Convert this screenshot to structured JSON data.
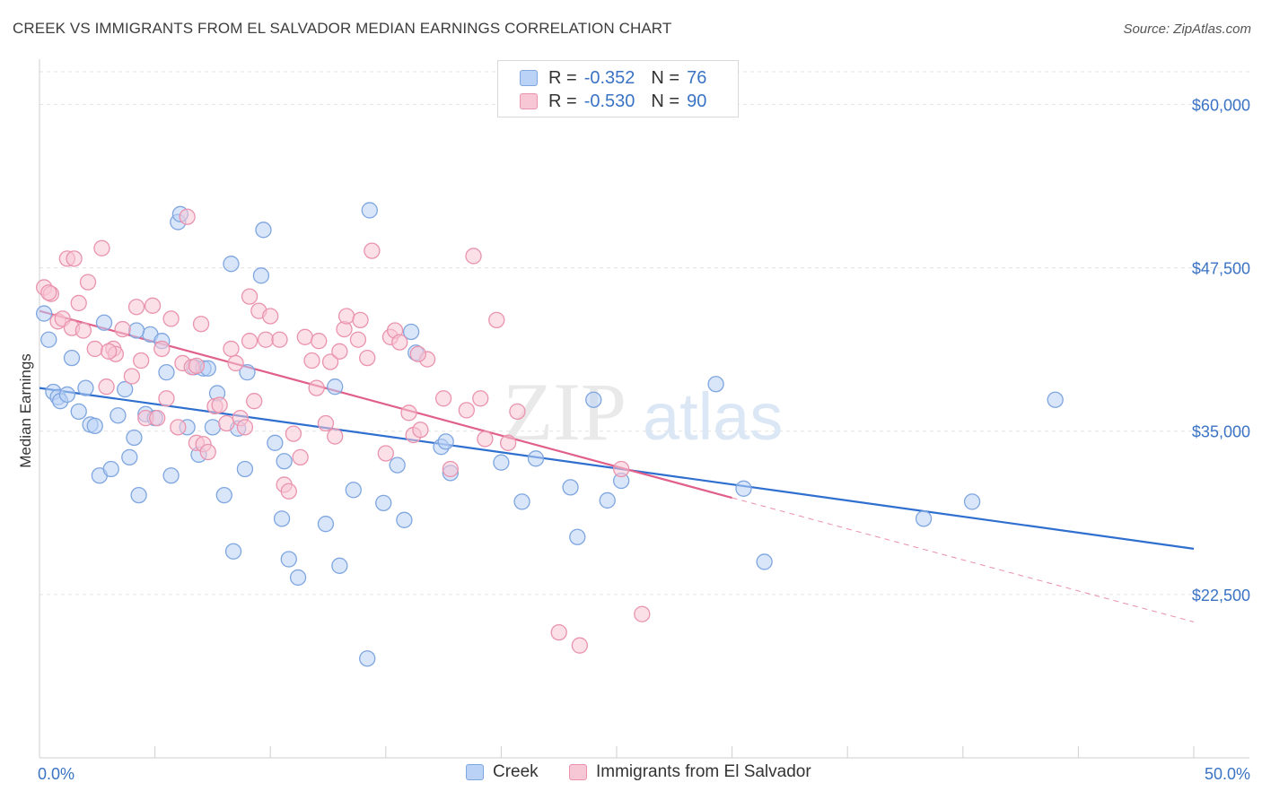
{
  "title": "CREEK VS IMMIGRANTS FROM EL SALVADOR MEDIAN EARNINGS CORRELATION CHART",
  "source": "Source: ZipAtlas.com",
  "watermark": {
    "zip": "ZIP",
    "atlas": "atlas"
  },
  "legend": {
    "r_label": "R =",
    "n_label": "N =",
    "rows": [
      {
        "r": "-0.352",
        "n": "76",
        "color": "#7fa6e0"
      },
      {
        "r": "-0.530",
        "n": "90",
        "color": "#ea93ae"
      }
    ]
  },
  "bottom_legend": [
    {
      "name": "Creek"
    },
    {
      "name": "Immigrants from El Salvador"
    }
  ],
  "chart_data": {
    "type": "scatter",
    "title": "CREEK VS IMMIGRANTS FROM EL SALVADOR MEDIAN EARNINGS CORRELATION CHART",
    "xlabel": "",
    "ylabel": "Median Earnings",
    "xlim": [
      0,
      50
    ],
    "ylim": [
      10000,
      62500
    ],
    "x_tick_labels": [
      "0.0%",
      "50.0%"
    ],
    "y_ticks": [
      22500,
      35000,
      47500,
      60000
    ],
    "y_tick_labels": [
      "$22,500",
      "$35,000",
      "$47,500",
      "$60,000"
    ],
    "grid": true,
    "legend_position": "top-center",
    "series": [
      {
        "name": "Creek",
        "color": "#7fa6e0",
        "fill": "#b9d2f5",
        "trend": {
          "x": [
            0,
            50
          ],
          "y": [
            38300,
            26000
          ],
          "style": "solid",
          "color": "#2f6fcf"
        },
        "points": [
          [
            0.2,
            44000
          ],
          [
            0.4,
            42000
          ],
          [
            0.6,
            38000
          ],
          [
            0.8,
            37600
          ],
          [
            0.9,
            37300
          ],
          [
            1.2,
            37800
          ],
          [
            1.4,
            40600
          ],
          [
            1.7,
            36500
          ],
          [
            2.0,
            38300
          ],
          [
            2.2,
            35500
          ],
          [
            2.4,
            35400
          ],
          [
            2.6,
            31600
          ],
          [
            2.8,
            43300
          ],
          [
            3.1,
            32100
          ],
          [
            3.4,
            36200
          ],
          [
            3.7,
            38200
          ],
          [
            3.9,
            33000
          ],
          [
            4.1,
            34500
          ],
          [
            4.3,
            30100
          ],
          [
            4.6,
            36300
          ],
          [
            4.8,
            42400
          ],
          [
            5.0,
            36000
          ],
          [
            5.3,
            41900
          ],
          [
            5.5,
            39500
          ],
          [
            5.7,
            31600
          ],
          [
            6.0,
            51000
          ],
          [
            6.1,
            51600
          ],
          [
            6.4,
            35300
          ],
          [
            6.7,
            39900
          ],
          [
            6.9,
            33200
          ],
          [
            7.1,
            39800
          ],
          [
            7.3,
            39800
          ],
          [
            7.5,
            35300
          ],
          [
            7.7,
            37900
          ],
          [
            8.0,
            30100
          ],
          [
            8.3,
            47800
          ],
          [
            8.4,
            25800
          ],
          [
            8.6,
            35200
          ],
          [
            8.9,
            32100
          ],
          [
            9.0,
            39500
          ],
          [
            9.6,
            46900
          ],
          [
            9.7,
            50400
          ],
          [
            10.2,
            34100
          ],
          [
            10.5,
            28300
          ],
          [
            10.6,
            32700
          ],
          [
            10.8,
            25200
          ],
          [
            11.2,
            23800
          ],
          [
            12.4,
            27900
          ],
          [
            12.8,
            38400
          ],
          [
            13.0,
            24700
          ],
          [
            13.6,
            30500
          ],
          [
            14.3,
            51900
          ],
          [
            14.2,
            17600
          ],
          [
            14.9,
            29500
          ],
          [
            15.5,
            32400
          ],
          [
            15.8,
            28200
          ],
          [
            16.1,
            42600
          ],
          [
            16.3,
            41000
          ],
          [
            17.4,
            33800
          ],
          [
            17.6,
            34200
          ],
          [
            17.8,
            31800
          ],
          [
            20.0,
            32600
          ],
          [
            20.9,
            29600
          ],
          [
            21.5,
            32900
          ],
          [
            23.0,
            30700
          ],
          [
            23.3,
            26900
          ],
          [
            24.0,
            37400
          ],
          [
            24.6,
            29700
          ],
          [
            25.2,
            31200
          ],
          [
            29.3,
            38600
          ],
          [
            30.5,
            30600
          ],
          [
            31.4,
            25000
          ],
          [
            38.3,
            28300
          ],
          [
            40.4,
            29600
          ],
          [
            44.0,
            37400
          ],
          [
            4.2,
            42700
          ]
        ]
      },
      {
        "name": "Immigrants from El Salvador",
        "color": "#ea93ae",
        "fill": "#f8c7d6",
        "trend": {
          "x": [
            0,
            30
          ],
          "y": [
            44200,
            29900
          ],
          "style": "solid",
          "color": "#e0608a",
          "extension": {
            "x": [
              30,
              50
            ],
            "y": [
              29900,
              20400
            ],
            "style": "dashed"
          }
        },
        "points": [
          [
            0.2,
            46000
          ],
          [
            0.5,
            45500
          ],
          [
            0.8,
            43400
          ],
          [
            1.0,
            43600
          ],
          [
            1.2,
            48200
          ],
          [
            1.4,
            42900
          ],
          [
            1.7,
            44800
          ],
          [
            1.9,
            42700
          ],
          [
            2.1,
            46400
          ],
          [
            2.4,
            41300
          ],
          [
            2.7,
            49000
          ],
          [
            2.9,
            38400
          ],
          [
            3.2,
            41300
          ],
          [
            3.3,
            40900
          ],
          [
            3.6,
            42800
          ],
          [
            4.0,
            39200
          ],
          [
            4.2,
            44500
          ],
          [
            4.4,
            40400
          ],
          [
            4.6,
            36000
          ],
          [
            4.9,
            44600
          ],
          [
            5.1,
            36000
          ],
          [
            5.3,
            41300
          ],
          [
            5.5,
            37500
          ],
          [
            5.7,
            43600
          ],
          [
            6.0,
            35300
          ],
          [
            6.2,
            40200
          ],
          [
            6.4,
            51400
          ],
          [
            6.6,
            39900
          ],
          [
            6.8,
            34100
          ],
          [
            7.0,
            43200
          ],
          [
            7.1,
            34000
          ],
          [
            7.3,
            33400
          ],
          [
            7.6,
            36900
          ],
          [
            7.8,
            37000
          ],
          [
            8.1,
            35600
          ],
          [
            8.3,
            41300
          ],
          [
            8.5,
            40200
          ],
          [
            8.7,
            36000
          ],
          [
            8.9,
            35300
          ],
          [
            9.1,
            45300
          ],
          [
            9.3,
            37300
          ],
          [
            9.5,
            44200
          ],
          [
            9.8,
            42000
          ],
          [
            10.0,
            43800
          ],
          [
            10.4,
            42000
          ],
          [
            10.6,
            30900
          ],
          [
            10.8,
            30400
          ],
          [
            11.0,
            34800
          ],
          [
            11.3,
            33000
          ],
          [
            11.5,
            42200
          ],
          [
            11.8,
            40400
          ],
          [
            12.0,
            38300
          ],
          [
            12.1,
            41900
          ],
          [
            12.4,
            35600
          ],
          [
            12.6,
            40300
          ],
          [
            12.8,
            34600
          ],
          [
            13.0,
            41100
          ],
          [
            13.2,
            42800
          ],
          [
            13.3,
            43800
          ],
          [
            13.8,
            42000
          ],
          [
            13.9,
            43500
          ],
          [
            14.2,
            40600
          ],
          [
            14.4,
            48800
          ],
          [
            15.0,
            33300
          ],
          [
            15.2,
            42200
          ],
          [
            15.4,
            42700
          ],
          [
            15.6,
            41800
          ],
          [
            16.0,
            36400
          ],
          [
            16.2,
            34700
          ],
          [
            16.5,
            35100
          ],
          [
            16.8,
            40500
          ],
          [
            17.5,
            37500
          ],
          [
            17.8,
            32100
          ],
          [
            18.5,
            36600
          ],
          [
            18.8,
            48400
          ],
          [
            19.1,
            37500
          ],
          [
            19.3,
            34400
          ],
          [
            19.8,
            43500
          ],
          [
            20.3,
            34100
          ],
          [
            20.7,
            36500
          ],
          [
            22.5,
            19600
          ],
          [
            23.4,
            18600
          ],
          [
            25.2,
            32100
          ],
          [
            26.1,
            21000
          ],
          [
            1.5,
            48200
          ],
          [
            3.0,
            41100
          ],
          [
            6.8,
            40000
          ],
          [
            9.1,
            41900
          ],
          [
            16.4,
            40900
          ],
          [
            0.4,
            45600
          ]
        ]
      }
    ]
  }
}
